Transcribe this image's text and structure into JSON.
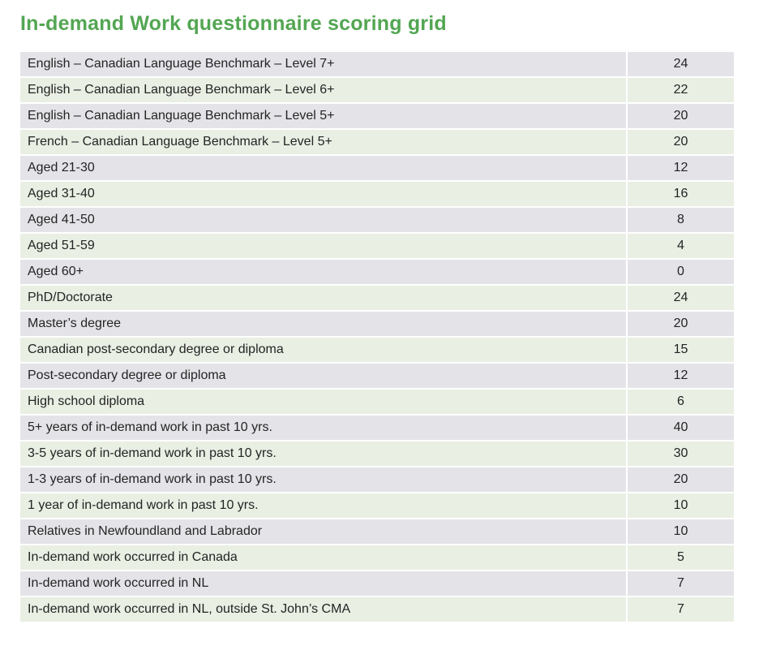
{
  "page": {
    "title": "In-demand Work questionnaire scoring grid"
  },
  "colors": {
    "title_green": "#53a653",
    "row_gray": "#e4e4e8",
    "row_green": "#e9efe3",
    "text": "#242424"
  },
  "table": {
    "rows": [
      {
        "label": "English – Canadian Language Benchmark – Level 7+",
        "score": "24"
      },
      {
        "label": "English – Canadian Language Benchmark – Level 6+",
        "score": "22"
      },
      {
        "label": "English – Canadian Language Benchmark – Level 5+",
        "score": "20"
      },
      {
        "label": "French – Canadian Language Benchmark – Level 5+",
        "score": "20"
      },
      {
        "label": "Aged 21-30",
        "score": "12"
      },
      {
        "label": "Aged 31-40",
        "score": "16"
      },
      {
        "label": "Aged 41-50",
        "score": "8"
      },
      {
        "label": "Aged 51-59",
        "score": "4"
      },
      {
        "label": "Aged 60+",
        "score": "0"
      },
      {
        "label": "PhD/Doctorate",
        "score": "24"
      },
      {
        "label": "Master’s degree",
        "score": "20"
      },
      {
        "label": "Canadian post-secondary degree or diploma",
        "score": "15"
      },
      {
        "label": "Post-secondary degree or diploma",
        "score": "12"
      },
      {
        "label": "High school diploma",
        "score": "6"
      },
      {
        "label": "5+ years of in-demand work in past 10 yrs.",
        "score": "40"
      },
      {
        "label": "3-5 years of in-demand work in past 10 yrs.",
        "score": "30"
      },
      {
        "label": "1-3 years of in-demand work in past 10 yrs.",
        "score": "20"
      },
      {
        "label": "1 year of in-demand work in past 10 yrs.",
        "score": "10"
      },
      {
        "label": "Relatives in Newfoundland and Labrador",
        "score": "10"
      },
      {
        "label": "In-demand work occurred in Canada",
        "score": "5"
      },
      {
        "label": "In-demand work occurred in NL",
        "score": "7"
      },
      {
        "label": "In-demand work occurred in NL, outside St. John’s CMA",
        "score": "7"
      }
    ]
  }
}
